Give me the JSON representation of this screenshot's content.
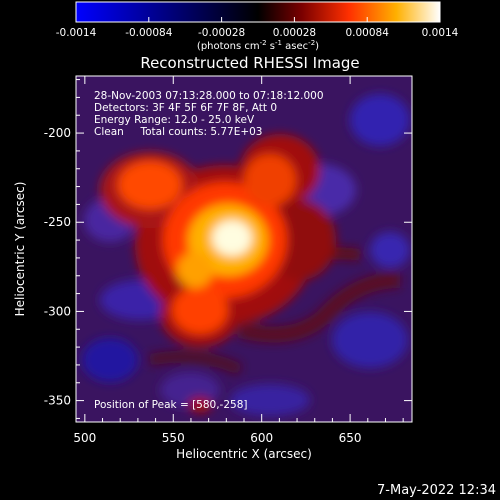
{
  "colorbar": {
    "ticks": [
      "-0.0014",
      "-0.00084",
      "-0.00028",
      "0.00028",
      "0.00084",
      "0.0014"
    ],
    "unit_prefix": "(photons cm",
    "unit_exp1": "-2",
    "unit_mid": " s",
    "unit_exp2": "-1",
    "unit_mid2": " asec",
    "unit_exp3": "-2",
    "unit_suffix": ")"
  },
  "chart_data": {
    "type": "heatmap",
    "title": "Reconstructed RHESSI Image",
    "xlabel": "Heliocentric X (arcsec)",
    "ylabel": "Heliocentric Y (arcsec)",
    "xlim": [
      495,
      685
    ],
    "ylim": [
      -362,
      -168
    ],
    "xticks": [
      "500",
      "550",
      "600",
      "650"
    ],
    "yticks": [
      "-200",
      "-250",
      "-300",
      "-350"
    ],
    "xtick_values": [
      500,
      550,
      600,
      650
    ],
    "ytick_values": [
      -200,
      -250,
      -300,
      -350
    ],
    "zlim": [
      -0.0014,
      0.0014
    ],
    "peak": [
      580,
      -258
    ],
    "annotations": [
      "28-Nov-2003 07:13:28.000 to 07:18:12.000",
      "Detectors: 3F 4F 5F 6F 7F 8F, Att 0",
      "Energy Range: 12.0 - 25.0 keV",
      "Clean     Total counts: 5.77E+03",
      "Position of Peak = [580,-258]"
    ]
  },
  "timestamp": "7-May-2022 12:34"
}
